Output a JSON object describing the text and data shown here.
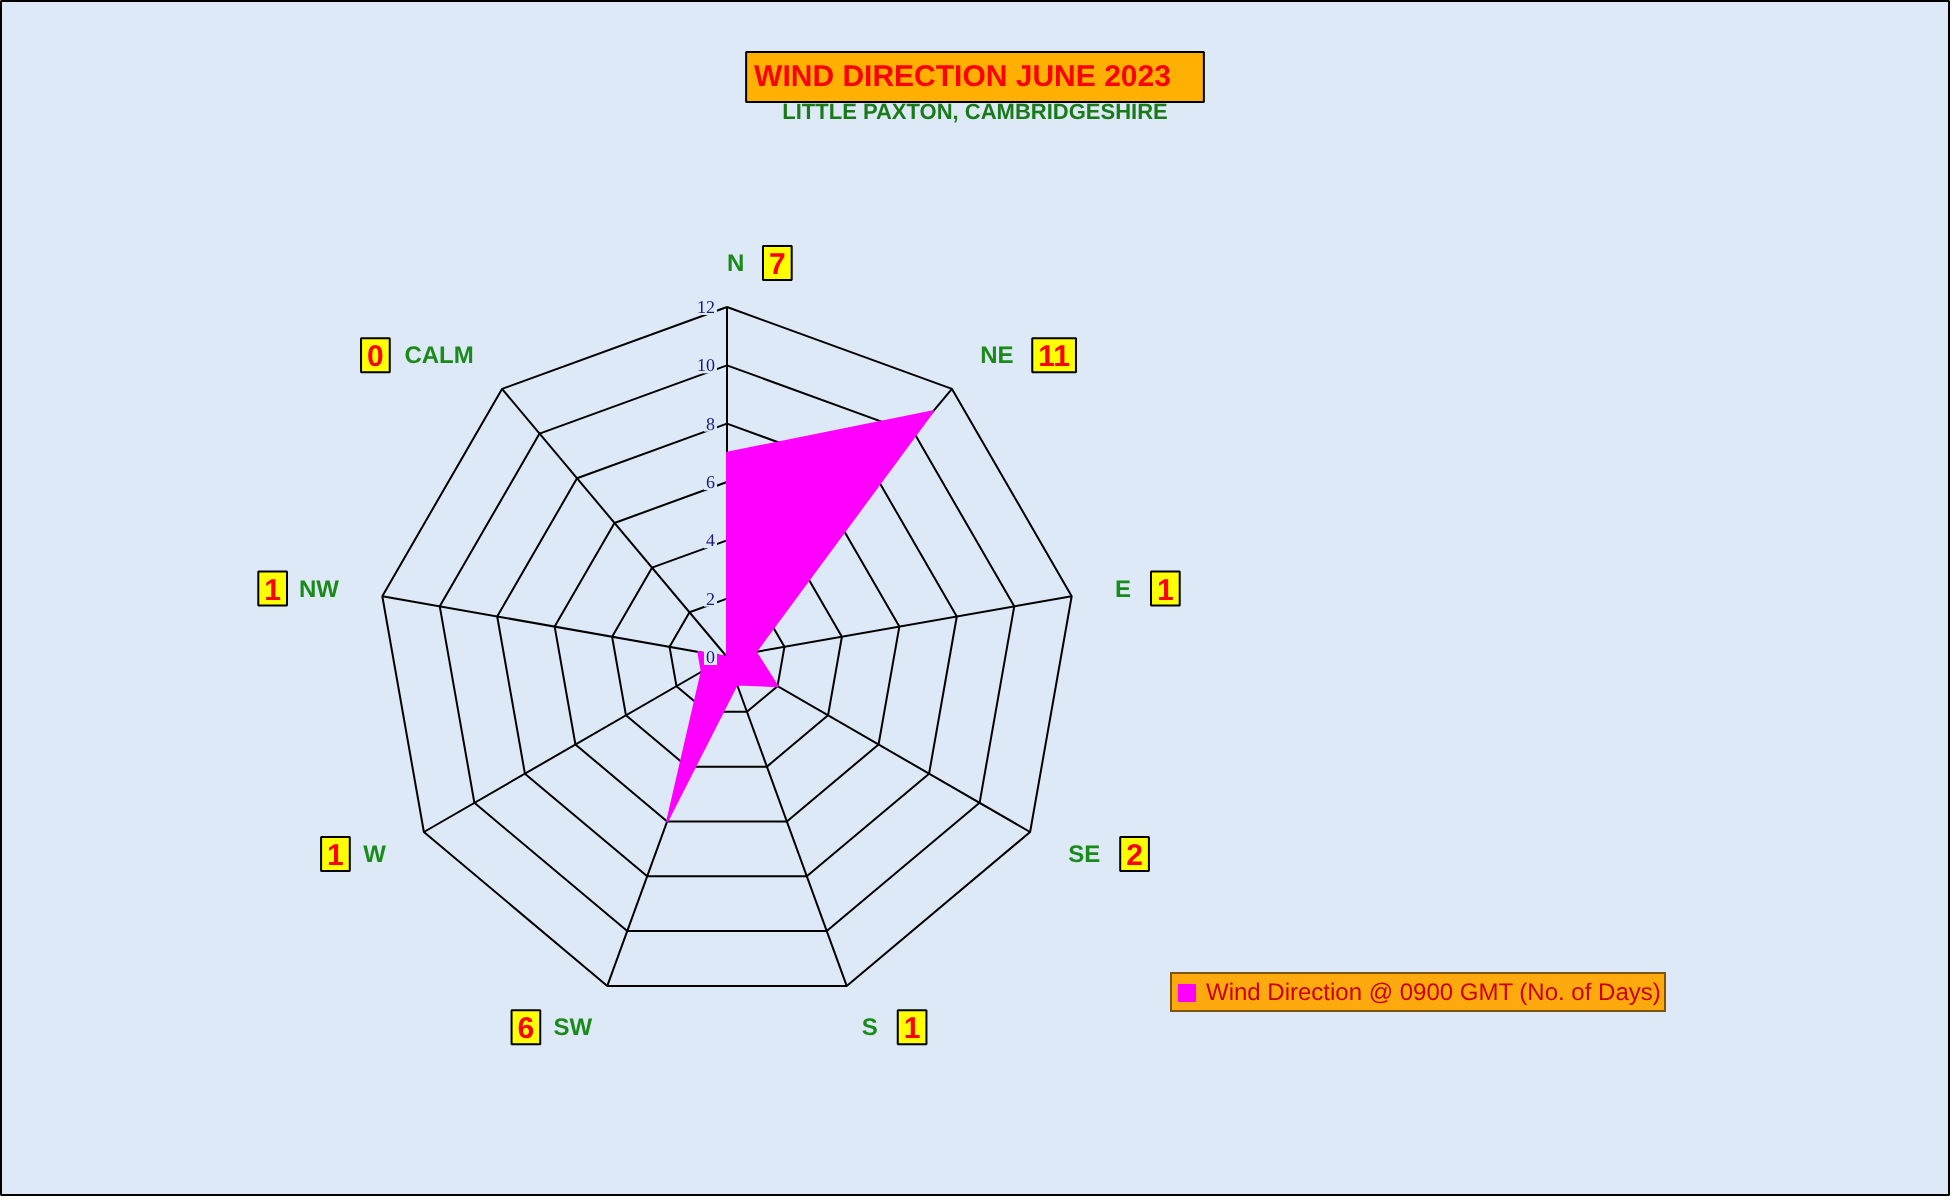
{
  "chart_data": {
    "type": "radar",
    "title": "WIND DIRECTION    JUNE 2023",
    "subtitle": "LITTLE PAXTON, CAMBRIDGESHIRE",
    "categories": [
      "N",
      "NE",
      "E",
      "SE",
      "S",
      "SW",
      "W",
      "NW",
      "CALM"
    ],
    "series": [
      {
        "name": "Wind Direction @ 0900 GMT (No. of Days)",
        "color": "#ff00ff",
        "values": [
          7,
          11,
          1,
          2,
          1,
          6,
          1,
          1,
          0
        ]
      }
    ],
    "annotations": [
      "7",
      "11",
      "1",
      "2",
      "1",
      "6",
      "1",
      "1",
      "0"
    ],
    "ylim": [
      0,
      12
    ],
    "yticks": [
      0,
      2,
      4,
      6,
      8,
      10,
      12
    ],
    "legend": "bottom right"
  }
}
